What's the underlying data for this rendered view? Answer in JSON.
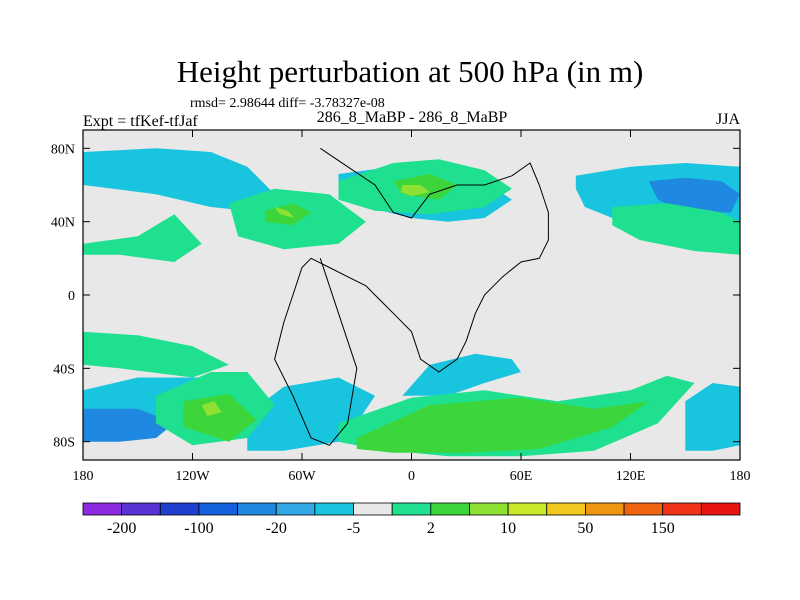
{
  "chart_data": {
    "type": "heatmap",
    "title": "Height perturbation at 500 hPa (in m)",
    "stats": "rmsd= 2.98644 diff= -3.78327e-08",
    "left_label": "Expt = tfKef-tfJaf",
    "center_label": "286_8_MaBP - 286_8_MaBP",
    "right_label": "JJA",
    "xlim": [
      -180,
      180
    ],
    "ylim": [
      -90,
      90
    ],
    "x_ticks": [
      {
        "value": -180,
        "label": "180"
      },
      {
        "value": -120,
        "label": "120W"
      },
      {
        "value": -60,
        "label": "60W"
      },
      {
        "value": 0,
        "label": "0"
      },
      {
        "value": 60,
        "label": "60E"
      },
      {
        "value": 120,
        "label": "120E"
      },
      {
        "value": 180,
        "label": "180"
      }
    ],
    "y_ticks": [
      {
        "value": 80,
        "label": "80N"
      },
      {
        "value": 40,
        "label": "40N"
      },
      {
        "value": 0,
        "label": "0"
      },
      {
        "value": -40,
        "label": "40S"
      },
      {
        "value": -80,
        "label": "80S"
      }
    ],
    "colorbar": {
      "colors": [
        "#8b2be2",
        "#5a32d6",
        "#2040d0",
        "#1560dc",
        "#1f88e0",
        "#34a8e6",
        "#19c4de",
        "#e8e8e8",
        "#1ee08e",
        "#3cd63c",
        "#8ee032",
        "#c8e828",
        "#f0c81e",
        "#f09614",
        "#f0640f",
        "#f03219",
        "#e8140f"
      ],
      "labels": [
        {
          "boundary": 1,
          "label": "-200"
        },
        {
          "boundary": 3,
          "label": "-100"
        },
        {
          "boundary": 5,
          "label": "-20"
        },
        {
          "boundary": 7,
          "label": "-5"
        },
        {
          "boundary": 9,
          "label": "2"
        },
        {
          "boundary": 11,
          "label": "10"
        },
        {
          "boundary": 13,
          "label": "50"
        },
        {
          "boundary": 15,
          "label": "150"
        }
      ]
    },
    "regions": [
      {
        "level": "-5",
        "color": "#19c4de",
        "lon": [
          -180,
          -140,
          -110,
          -90,
          -80,
          -70,
          -80,
          -110,
          -140,
          -180
        ],
        "lat": [
          78,
          80,
          78,
          70,
          60,
          50,
          45,
          48,
          55,
          60
        ]
      },
      {
        "level": "-5",
        "color": "#19c4de",
        "lon": [
          -40,
          -10,
          20,
          40,
          55,
          40,
          20,
          0,
          -25,
          -40
        ],
        "lat": [
          66,
          70,
          70,
          62,
          52,
          42,
          40,
          42,
          48,
          58
        ]
      },
      {
        "level": "-5",
        "color": "#19c4de",
        "lon": [
          90,
          120,
          150,
          180,
          180,
          150,
          120,
          95,
          90
        ],
        "lat": [
          65,
          70,
          72,
          70,
          30,
          32,
          38,
          48,
          58
        ]
      },
      {
        "level": "-10",
        "color": "#1f88e0",
        "lon": [
          130,
          150,
          170,
          180,
          175,
          150,
          135
        ],
        "lat": [
          62,
          64,
          62,
          55,
          45,
          45,
          52
        ]
      },
      {
        "level": "-5",
        "color": "#19c4de",
        "lon": [
          -180,
          -150,
          -120,
          -95,
          -85,
          -110,
          -150,
          -180
        ],
        "lat": [
          -70,
          -66,
          -66,
          -60,
          -50,
          -45,
          -45,
          -52
        ]
      },
      {
        "level": "-5",
        "color": "#19c4de",
        "lon": [
          -90,
          -70,
          -40,
          -30,
          -20,
          -40,
          -70,
          -90
        ],
        "lat": [
          -85,
          -85,
          -80,
          -70,
          -55,
          -45,
          -50,
          -65
        ]
      },
      {
        "level": "-10",
        "color": "#1f88e0",
        "lon": [
          -180,
          -160,
          -140,
          -130,
          -150,
          -180
        ],
        "lat": [
          -80,
          -80,
          -78,
          -70,
          -62,
          -62
        ]
      },
      {
        "level": "-5",
        "color": "#19c4de",
        "lon": [
          -5,
          20,
          40,
          60,
          55,
          35,
          10
        ],
        "lat": [
          -55,
          -55,
          -48,
          -42,
          -35,
          -32,
          -38
        ]
      },
      {
        "level": "-5",
        "color": "#19c4de",
        "lon": [
          150,
          165,
          180,
          180,
          165,
          150
        ],
        "lat": [
          -85,
          -85,
          -82,
          -50,
          -48,
          -58
        ]
      },
      {
        "level": "5",
        "color": "#1ee08e",
        "lon": [
          -180,
          -150,
          -130,
          -115,
          -130,
          -160,
          -180
        ],
        "lat": [
          28,
          32,
          44,
          28,
          18,
          22,
          22
        ]
      },
      {
        "level": "5",
        "color": "#1ee08e",
        "lon": [
          -100,
          -75,
          -45,
          -25,
          -40,
          -70,
          -95
        ],
        "lat": [
          50,
          58,
          55,
          40,
          28,
          25,
          32
        ]
      },
      {
        "level": "5",
        "color": "#1ee08e",
        "lon": [
          -40,
          -10,
          15,
          40,
          55,
          40,
          10,
          -20,
          -40
        ],
        "lat": [
          62,
          72,
          74,
          68,
          58,
          48,
          44,
          46,
          52
        ]
      },
      {
        "level": "5",
        "color": "#1ee08e",
        "lon": [
          110,
          140,
          170,
          180,
          180,
          155,
          125,
          110
        ],
        "lat": [
          48,
          50,
          45,
          40,
          22,
          24,
          30,
          38
        ]
      },
      {
        "level": "5",
        "color": "#1ee08e",
        "lon": [
          -180,
          -150,
          -120,
          -100,
          -120,
          -160,
          -180
        ],
        "lat": [
          -20,
          -22,
          -28,
          -38,
          -45,
          -40,
          -38
        ]
      },
      {
        "level": "5",
        "color": "#1ee08e",
        "lon": [
          -140,
          -110,
          -90,
          -75,
          -90,
          -120,
          -140
        ],
        "lat": [
          -55,
          -42,
          -42,
          -60,
          -78,
          -82,
          -70
        ]
      },
      {
        "level": "5",
        "color": "#1ee08e",
        "lon": [
          -40,
          0,
          40,
          80,
          120,
          140,
          155,
          135,
          100,
          60,
          20,
          -20,
          -40
        ],
        "lat": [
          -70,
          -56,
          -52,
          -58,
          -52,
          -44,
          -48,
          -70,
          -85,
          -88,
          -88,
          -84,
          -80
        ]
      },
      {
        "level": "10",
        "color": "#3cd63c",
        "lon": [
          -125,
          -100,
          -85,
          -100,
          -125
        ],
        "lat": [
          -58,
          -54,
          -68,
          -80,
          -72
        ]
      },
      {
        "level": "10",
        "color": "#3cd63c",
        "lon": [
          -30,
          10,
          60,
          100,
          130,
          110,
          70,
          30,
          -10,
          -30
        ],
        "lat": [
          -78,
          -60,
          -56,
          -62,
          -58,
          -72,
          -84,
          -86,
          -86,
          -84
        ]
      },
      {
        "level": "10",
        "color": "#3cd63c",
        "lon": [
          -80,
          -65,
          -55,
          -65,
          -80
        ],
        "lat": [
          46,
          50,
          45,
          38,
          40
        ]
      },
      {
        "level": "10",
        "color": "#3cd63c",
        "lon": [
          -10,
          10,
          25,
          15,
          -5
        ],
        "lat": [
          62,
          66,
          60,
          52,
          55
        ]
      },
      {
        "level": "15",
        "color": "#8ee032",
        "lon": [
          -5,
          5,
          10,
          0,
          -6
        ],
        "lat": [
          60,
          60,
          56,
          54,
          56
        ]
      },
      {
        "level": "15",
        "color": "#8ee032",
        "lon": [
          -75,
          -68,
          -64,
          -72
        ],
        "lat": [
          48,
          46,
          42,
          44
        ]
      },
      {
        "level": "15",
        "color": "#8ee032",
        "lon": [
          -115,
          -108,
          -104,
          -112
        ],
        "lat": [
          -60,
          -58,
          -64,
          -66
        ]
      }
    ],
    "coastline": {
      "lon": [
        -50,
        -35,
        -20,
        -10,
        0,
        10,
        25,
        40,
        55,
        65,
        70,
        75,
        75,
        70,
        60,
        50,
        40,
        35,
        30,
        25,
        15,
        5,
        0,
        -10,
        -20,
        -25,
        -35,
        -45,
        -55,
        -60,
        -65,
        -70,
        -75,
        -65,
        -55,
        -45,
        -35,
        -30,
        -40,
        -50
      ],
      "lat": [
        80,
        70,
        60,
        45,
        42,
        55,
        60,
        60,
        65,
        72,
        60,
        45,
        30,
        20,
        18,
        10,
        0,
        -10,
        -25,
        -35,
        -42,
        -35,
        -20,
        -10,
        0,
        5,
        10,
        15,
        20,
        15,
        0,
        -15,
        -35,
        -55,
        -78,
        -82,
        -70,
        -40,
        -10,
        20
      ]
    }
  }
}
